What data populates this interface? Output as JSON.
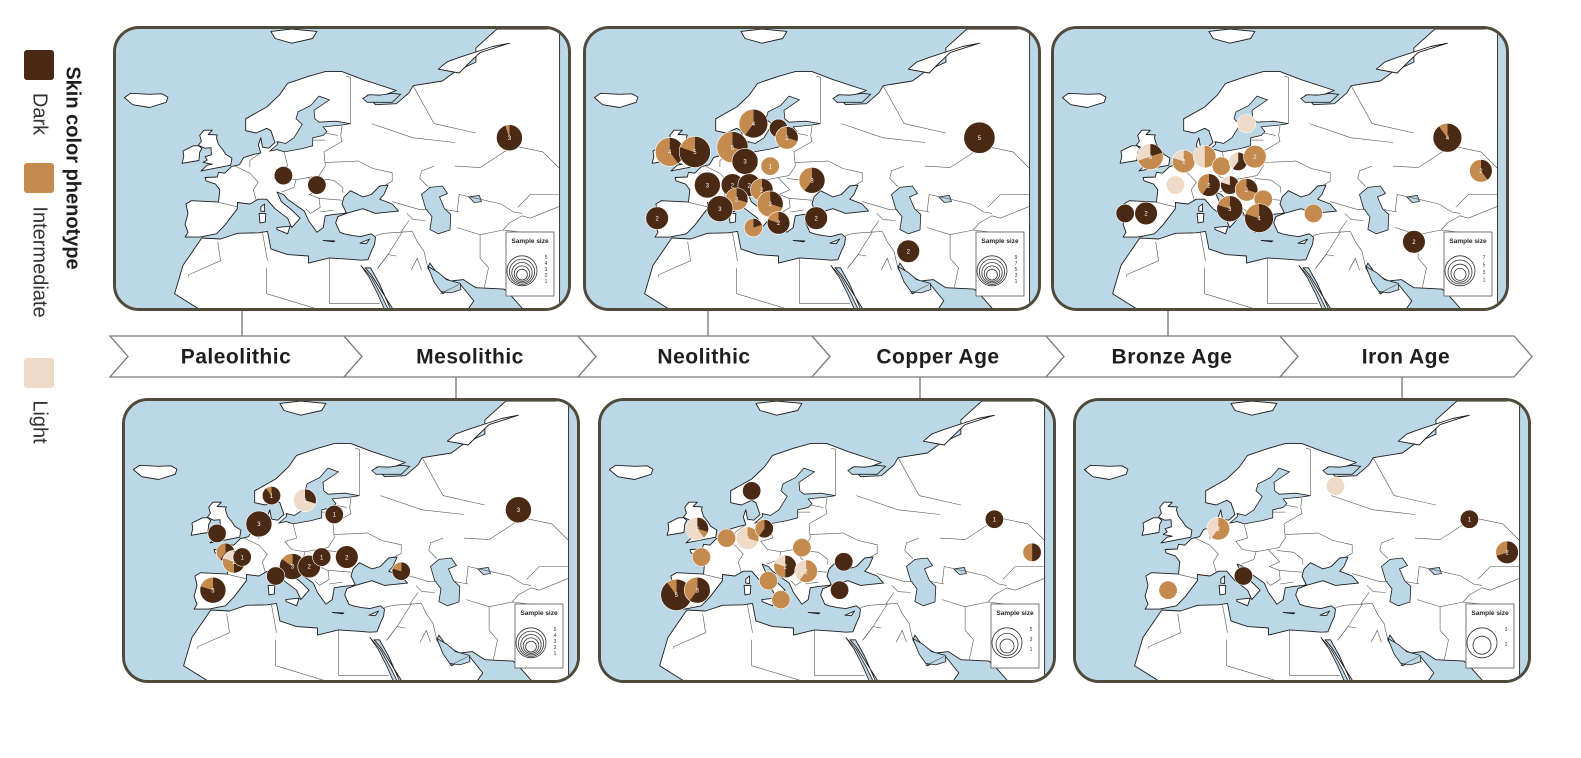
{
  "legend": {
    "title": "Skin color phenotype",
    "items": [
      {
        "label": "Dark",
        "color": "#4a2a14"
      },
      {
        "label": "Intermediate",
        "color": "#c48a4e"
      },
      {
        "label": "Light",
        "color": "#efd9c7"
      }
    ]
  },
  "timeline": {
    "periods": [
      "Paleolithic",
      "Mesolithic",
      "Neolithic",
      "Copper Age",
      "Bronze Age",
      "Iron Age"
    ]
  },
  "colors": {
    "sea": "#bcd7e6",
    "land": "#ffffff",
    "border": "#4f4a3c",
    "dark": "#4a2a14",
    "intermediate": "#c48a4e",
    "light": "#efd9c7"
  },
  "maps": [
    {
      "id": "paleolithic",
      "period": "Paleolithic",
      "sample_size_label": "Sample size",
      "sample_size_ticks": [
        "5",
        "4",
        "3",
        "2",
        "1"
      ],
      "pies": [
        {
          "lon": 68,
          "lat": 57,
          "n": 3,
          "dark": 0.95,
          "intermediate": 0.05,
          "light": 0,
          "label": "3"
        },
        {
          "lon": 14,
          "lat": 49,
          "n": 1,
          "dark": 1,
          "intermediate": 0,
          "light": 0,
          "label": ""
        },
        {
          "lon": 22,
          "lat": 47,
          "n": 1,
          "dark": 1,
          "intermediate": 0,
          "light": 0,
          "label": ""
        }
      ]
    },
    {
      "id": "mesolithic",
      "period": "Mesolithic",
      "sample_size_label": "Sample size",
      "sample_size_ticks": [
        "5",
        "4",
        "3",
        "2",
        "1"
      ],
      "pies": [
        {
          "lon": 68,
          "lat": 57,
          "n": 3,
          "dark": 1,
          "intermediate": 0,
          "light": 0,
          "label": "3"
        },
        {
          "lon": 9,
          "lat": 60,
          "n": 1,
          "dark": 0.9,
          "intermediate": 0.1,
          "light": 0,
          "label": "1"
        },
        {
          "lon": 17,
          "lat": 59,
          "n": 2,
          "dark": 0.3,
          "intermediate": 0,
          "light": 0.7,
          "label": "2"
        },
        {
          "lon": 6,
          "lat": 54,
          "n": 3,
          "dark": 1,
          "intermediate": 0,
          "light": 0,
          "label": "3"
        },
        {
          "lon": 24,
          "lat": 56,
          "n": 1,
          "dark": 1,
          "intermediate": 0,
          "light": 0,
          "label": "1"
        },
        {
          "lon": -4,
          "lat": 52,
          "n": 1,
          "dark": 1,
          "intermediate": 0,
          "light": 0,
          "label": ""
        },
        {
          "lon": -2,
          "lat": 48,
          "n": 1,
          "dark": 0.6,
          "intermediate": 0.4,
          "light": 0,
          "label": ""
        },
        {
          "lon": 0,
          "lat": 46,
          "n": 2,
          "dark": 0.5,
          "intermediate": 0.3,
          "light": 0.2,
          "label": "2"
        },
        {
          "lon": 2,
          "lat": 47,
          "n": 1,
          "dark": 1,
          "intermediate": 0,
          "light": 0,
          "label": "1"
        },
        {
          "lon": 14,
          "lat": 45,
          "n": 3,
          "dark": 0.85,
          "intermediate": 0.15,
          "light": 0,
          "label": "3"
        },
        {
          "lon": 18,
          "lat": 45,
          "n": 2,
          "dark": 1,
          "intermediate": 0,
          "light": 0,
          "label": "2"
        },
        {
          "lon": 21,
          "lat": 47,
          "n": 1,
          "dark": 1,
          "intermediate": 0,
          "light": 0,
          "label": "1"
        },
        {
          "lon": 27,
          "lat": 47,
          "n": 2,
          "dark": 1,
          "intermediate": 0,
          "light": 0,
          "label": "2"
        },
        {
          "lon": 10,
          "lat": 43,
          "n": 1,
          "dark": 1,
          "intermediate": 0,
          "light": 0,
          "label": ""
        },
        {
          "lon": -5,
          "lat": 40,
          "n": 3,
          "dark": 0.8,
          "intermediate": 0.2,
          "light": 0,
          "label": "3"
        },
        {
          "lon": 40,
          "lat": 44,
          "n": 1,
          "dark": 0.8,
          "intermediate": 0.2,
          "light": 0,
          "label": ""
        }
      ]
    },
    {
      "id": "neolithic",
      "period": "Neolithic",
      "sample_size_label": "Sample size",
      "sample_size_ticks": [
        "9",
        "7",
        "5",
        "3",
        "1"
      ],
      "pies": [
        {
          "lon": 68,
          "lat": 57,
          "n": 5,
          "dark": 1,
          "intermediate": 0,
          "light": 0,
          "label": "5"
        },
        {
          "lon": 14,
          "lat": 60,
          "n": 4,
          "dark": 0.6,
          "intermediate": 0.4,
          "light": 0,
          "label": "4"
        },
        {
          "lon": 20,
          "lat": 59,
          "n": 1,
          "dark": 1,
          "intermediate": 0,
          "light": 0,
          "label": ""
        },
        {
          "lon": 22,
          "lat": 57,
          "n": 2,
          "dark": 0.3,
          "intermediate": 0.7,
          "light": 0,
          "label": "2"
        },
        {
          "lon": -6,
          "lat": 54,
          "n": 4,
          "dark": 0.4,
          "intermediate": 0.6,
          "light": 0,
          "label": "4"
        },
        {
          "lon": 0,
          "lat": 54,
          "n": 5,
          "dark": 0.8,
          "intermediate": 0.2,
          "light": 0,
          "label": "5"
        },
        {
          "lon": 9,
          "lat": 55,
          "n": 5,
          "dark": 0.3,
          "intermediate": 0.7,
          "light": 0,
          "label": "5"
        },
        {
          "lon": 12,
          "lat": 52,
          "n": 3,
          "dark": 1,
          "intermediate": 0,
          "light": 0,
          "label": "3"
        },
        {
          "lon": 18,
          "lat": 51,
          "n": 1,
          "dark": 0,
          "intermediate": 1,
          "light": 0,
          "label": "1"
        },
        {
          "lon": 3,
          "lat": 47,
          "n": 3,
          "dark": 1,
          "intermediate": 0,
          "light": 0,
          "label": "3"
        },
        {
          "lon": 9,
          "lat": 47,
          "n": 2,
          "dark": 1,
          "intermediate": 0,
          "light": 0,
          "label": "2"
        },
        {
          "lon": 13,
          "lat": 47,
          "n": 2,
          "dark": 1,
          "intermediate": 0,
          "light": 0,
          "label": "2"
        },
        {
          "lon": 16,
          "lat": 46,
          "n": 2,
          "dark": 0.5,
          "intermediate": 0.5,
          "light": 0,
          "label": "2"
        },
        {
          "lon": 28,
          "lat": 48,
          "n": 3,
          "dark": 0.6,
          "intermediate": 0.4,
          "light": 0,
          "label": "3"
        },
        {
          "lon": 10,
          "lat": 44,
          "n": 2,
          "dark": 0.3,
          "intermediate": 0.7,
          "light": 0,
          "label": "2"
        },
        {
          "lon": 6,
          "lat": 42,
          "n": 3,
          "dark": 1,
          "intermediate": 0,
          "light": 0,
          "label": "3"
        },
        {
          "lon": 18,
          "lat": 43,
          "n": 3,
          "dark": 0.3,
          "intermediate": 0.7,
          "light": 0,
          "label": "3"
        },
        {
          "lon": -9,
          "lat": 40,
          "n": 2,
          "dark": 1,
          "intermediate": 0,
          "light": 0,
          "label": "2"
        },
        {
          "lon": 14,
          "lat": 38,
          "n": 1,
          "dark": 0.2,
          "intermediate": 0.8,
          "light": 0,
          "label": ""
        },
        {
          "lon": 20,
          "lat": 39,
          "n": 2,
          "dark": 0.8,
          "intermediate": 0.2,
          "light": 0,
          "label": "2"
        },
        {
          "lon": 29,
          "lat": 40,
          "n": 2,
          "dark": 1,
          "intermediate": 0,
          "light": 0,
          "label": "2"
        },
        {
          "lon": 51,
          "lat": 33,
          "n": 2,
          "dark": 1,
          "intermediate": 0,
          "light": 0,
          "label": "2"
        }
      ]
    },
    {
      "id": "copper-age",
      "period": "Copper Age",
      "sample_size_label": "Sample size",
      "sample_size_ticks": [
        "5",
        "3",
        "1"
      ],
      "pies": [
        {
          "lon": 68,
          "lat": 55,
          "n": 1,
          "dark": 1,
          "intermediate": 0,
          "light": 0,
          "label": "1"
        },
        {
          "lon": 77,
          "lat": 48,
          "n": 1,
          "dark": 0.5,
          "intermediate": 0.5,
          "light": 0,
          "label": ""
        },
        {
          "lon": 10,
          "lat": 61,
          "n": 1,
          "dark": 1,
          "intermediate": 0,
          "light": 0,
          "label": ""
        },
        {
          "lon": -3,
          "lat": 53,
          "n": 2,
          "dark": 0.3,
          "intermediate": 0.1,
          "light": 0.6,
          "label": "2"
        },
        {
          "lon": 4,
          "lat": 51,
          "n": 1,
          "dark": 0,
          "intermediate": 1,
          "light": 0,
          "label": ""
        },
        {
          "lon": 9,
          "lat": 51,
          "n": 2,
          "dark": 0,
          "intermediate": 0.3,
          "light": 0.7,
          "label": "2"
        },
        {
          "lon": 13,
          "lat": 53,
          "n": 1,
          "dark": 0.6,
          "intermediate": 0.4,
          "light": 0,
          "label": ""
        },
        {
          "lon": -2,
          "lat": 47,
          "n": 1,
          "dark": 0,
          "intermediate": 1,
          "light": 0,
          "label": ""
        },
        {
          "lon": 22,
          "lat": 49,
          "n": 1,
          "dark": 0,
          "intermediate": 1,
          "light": 0,
          "label": ""
        },
        {
          "lon": 18,
          "lat": 45,
          "n": 2,
          "dark": 0.5,
          "intermediate": 0.3,
          "light": 0.2,
          "label": "2"
        },
        {
          "lon": 23,
          "lat": 44,
          "n": 2,
          "dark": 0,
          "intermediate": 0.6,
          "light": 0.4,
          "label": "2"
        },
        {
          "lon": 32,
          "lat": 46,
          "n": 1,
          "dark": 1,
          "intermediate": 0,
          "light": 0,
          "label": ""
        },
        {
          "lon": 14,
          "lat": 42,
          "n": 1,
          "dark": 0,
          "intermediate": 1,
          "light": 0,
          "label": ""
        },
        {
          "lon": 31,
          "lat": 40,
          "n": 1,
          "dark": 1,
          "intermediate": 0,
          "light": 0,
          "label": ""
        },
        {
          "lon": -8,
          "lat": 39,
          "n": 5,
          "dark": 0.9,
          "intermediate": 0.1,
          "light": 0,
          "label": "5"
        },
        {
          "lon": -3,
          "lat": 40,
          "n": 3,
          "dark": 0.6,
          "intermediate": 0.4,
          "light": 0,
          "label": "3"
        },
        {
          "lon": 17,
          "lat": 38,
          "n": 1,
          "dark": 0,
          "intermediate": 1,
          "light": 0,
          "label": ""
        }
      ]
    },
    {
      "id": "bronze-age",
      "period": "Bronze Age",
      "sample_size_label": "Sample size",
      "sample_size_ticks": [
        "7",
        "5",
        "3",
        "1"
      ],
      "pies": [
        {
          "lon": 68,
          "lat": 57,
          "n": 4,
          "dark": 0.9,
          "intermediate": 0.1,
          "light": 0,
          "label": "4"
        },
        {
          "lon": 76,
          "lat": 50,
          "n": 2,
          "dark": 0.4,
          "intermediate": 0.6,
          "light": 0,
          "label": "2"
        },
        {
          "lon": 60,
          "lat": 35,
          "n": 2,
          "dark": 1,
          "intermediate": 0,
          "light": 0,
          "label": "2"
        },
        {
          "lon": 20,
          "lat": 60,
          "n": 1,
          "dark": 0,
          "intermediate": 0,
          "light": 1,
          "label": ""
        },
        {
          "lon": -3,
          "lat": 53,
          "n": 3,
          "dark": 0.2,
          "intermediate": 0.5,
          "light": 0.3,
          "label": "3"
        },
        {
          "lon": 5,
          "lat": 52,
          "n": 2,
          "dark": 0,
          "intermediate": 0.8,
          "light": 0.2,
          "label": "2"
        },
        {
          "lon": 10,
          "lat": 53,
          "n": 2,
          "dark": 0,
          "intermediate": 0.5,
          "light": 0.5,
          "label": ""
        },
        {
          "lon": 14,
          "lat": 51,
          "n": 1,
          "dark": 0,
          "intermediate": 1,
          "light": 0,
          "label": ""
        },
        {
          "lon": 18,
          "lat": 52,
          "n": 1,
          "dark": 0.6,
          "intermediate": 0,
          "light": 0.4,
          "label": ""
        },
        {
          "lon": 22,
          "lat": 53,
          "n": 2,
          "dark": 0,
          "intermediate": 1,
          "light": 0,
          "label": "2"
        },
        {
          "lon": 3,
          "lat": 47,
          "n": 1,
          "dark": 0,
          "intermediate": 0,
          "light": 1,
          "label": ""
        },
        {
          "lon": 11,
          "lat": 47,
          "n": 2,
          "dark": 0.6,
          "intermediate": 0.4,
          "light": 0,
          "label": "2"
        },
        {
          "lon": 16,
          "lat": 47,
          "n": 1,
          "dark": 0.8,
          "intermediate": 0,
          "light": 0.2,
          "label": ""
        },
        {
          "lon": 20,
          "lat": 46,
          "n": 2,
          "dark": 0.3,
          "intermediate": 0.7,
          "light": 0,
          "label": "2"
        },
        {
          "lon": 24,
          "lat": 44,
          "n": 1,
          "dark": 0,
          "intermediate": 1,
          "light": 0,
          "label": ""
        },
        {
          "lon": 16,
          "lat": 42,
          "n": 3,
          "dark": 0.8,
          "intermediate": 0.2,
          "light": 0,
          "label": "3"
        },
        {
          "lon": 23,
          "lat": 40,
          "n": 4,
          "dark": 0.8,
          "intermediate": 0.2,
          "light": 0,
          "label": "4"
        },
        {
          "lon": -9,
          "lat": 41,
          "n": 1,
          "dark": 1,
          "intermediate": 0,
          "light": 0,
          "label": ""
        },
        {
          "lon": -4,
          "lat": 41,
          "n": 2,
          "dark": 1,
          "intermediate": 0,
          "light": 0,
          "label": "2"
        },
        {
          "lon": 36,
          "lat": 41,
          "n": 1,
          "dark": 0,
          "intermediate": 1,
          "light": 0,
          "label": ""
        }
      ]
    },
    {
      "id": "iron-age",
      "period": "Iron Age",
      "sample_size_label": "Sample size",
      "sample_size_ticks": [
        "3",
        "1"
      ],
      "pies": [
        {
          "lon": 68,
          "lat": 55,
          "n": 1,
          "dark": 1,
          "intermediate": 0,
          "light": 0,
          "label": "1"
        },
        {
          "lon": 77,
          "lat": 48,
          "n": 2,
          "dark": 0.7,
          "intermediate": 0.3,
          "light": 0,
          "label": "2"
        },
        {
          "lon": 36,
          "lat": 62,
          "n": 1,
          "dark": 0,
          "intermediate": 0,
          "light": 1,
          "label": ""
        },
        {
          "lon": 8,
          "lat": 53,
          "n": 2,
          "dark": 0,
          "intermediate": 0.6,
          "light": 0.4,
          "label": "2"
        },
        {
          "lon": 14,
          "lat": 43,
          "n": 1,
          "dark": 1,
          "intermediate": 0,
          "light": 0,
          "label": ""
        },
        {
          "lon": -4,
          "lat": 40,
          "n": 1,
          "dark": 0,
          "intermediate": 1,
          "light": 0,
          "label": ""
        }
      ]
    }
  ]
}
